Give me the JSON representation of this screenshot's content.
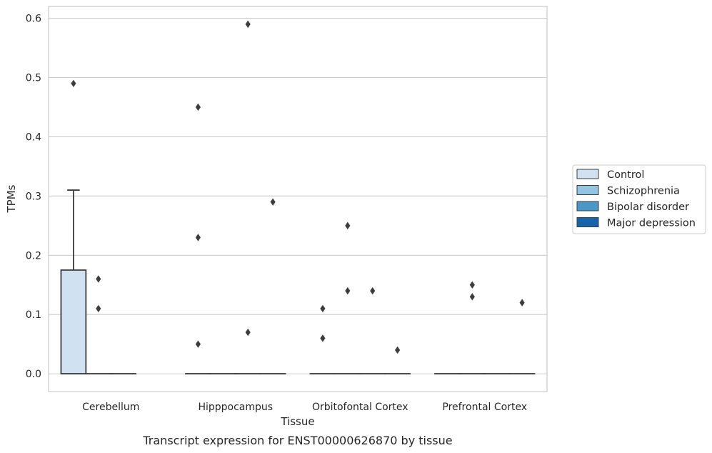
{
  "chart_data": {
    "type": "box",
    "xlabel": "Tissue",
    "ylabel": "TPMs",
    "caption": "Transcript expression for ENST00000626870 by tissue",
    "ylim": [
      -0.03,
      0.62
    ],
    "yticks": [
      "0.0",
      "0.1",
      "0.2",
      "0.3",
      "0.4",
      "0.5",
      "0.6"
    ],
    "grid": "horizontal",
    "legend_position": "right",
    "categories": [
      "Cerebellum",
      "Hipppocampus",
      "Orbitofontal Cortex",
      "Prefrontal Cortex"
    ],
    "series": [
      {
        "name": "Control",
        "color": "#d0e1f2"
      },
      {
        "name": "Schizophrenia",
        "color": "#94c4df"
      },
      {
        "name": "Bipolar disorder",
        "color": "#4a98c9"
      },
      {
        "name": "Major depression",
        "color": "#1764ab"
      }
    ],
    "boxes": [
      {
        "category": 0,
        "series": 0,
        "q1": 0.0,
        "median": 0.0,
        "q3": 0.175,
        "whisker_low": 0.0,
        "whisker_high": 0.31
      },
      {
        "category": 0,
        "series": 1,
        "q1": 0.0,
        "median": 0.0,
        "q3": 0.0,
        "whisker_low": 0.0,
        "whisker_high": 0.0
      },
      {
        "category": 0,
        "series": 2,
        "q1": 0.0,
        "median": 0.0,
        "q3": 0.0,
        "whisker_low": 0.0,
        "whisker_high": 0.0
      },
      {
        "category": 1,
        "series": 0,
        "q1": 0.0,
        "median": 0.0,
        "q3": 0.0,
        "whisker_low": 0.0,
        "whisker_high": 0.0
      },
      {
        "category": 1,
        "series": 1,
        "q1": 0.0,
        "median": 0.0,
        "q3": 0.0,
        "whisker_low": 0.0,
        "whisker_high": 0.0
      },
      {
        "category": 1,
        "series": 2,
        "q1": 0.0,
        "median": 0.0,
        "q3": 0.0,
        "whisker_low": 0.0,
        "whisker_high": 0.0
      },
      {
        "category": 1,
        "series": 3,
        "q1": 0.0,
        "median": 0.0,
        "q3": 0.0,
        "whisker_low": 0.0,
        "whisker_high": 0.0
      },
      {
        "category": 2,
        "series": 0,
        "q1": 0.0,
        "median": 0.0,
        "q3": 0.0,
        "whisker_low": 0.0,
        "whisker_high": 0.0
      },
      {
        "category": 2,
        "series": 1,
        "q1": 0.0,
        "median": 0.0,
        "q3": 0.0,
        "whisker_low": 0.0,
        "whisker_high": 0.0
      },
      {
        "category": 2,
        "series": 2,
        "q1": 0.0,
        "median": 0.0,
        "q3": 0.0,
        "whisker_low": 0.0,
        "whisker_high": 0.0
      },
      {
        "category": 2,
        "series": 3,
        "q1": 0.0,
        "median": 0.0,
        "q3": 0.0,
        "whisker_low": 0.0,
        "whisker_high": 0.0
      },
      {
        "category": 3,
        "series": 0,
        "q1": 0.0,
        "median": 0.0,
        "q3": 0.0,
        "whisker_low": 0.0,
        "whisker_high": 0.0
      },
      {
        "category": 3,
        "series": 1,
        "q1": 0.0,
        "median": 0.0,
        "q3": 0.0,
        "whisker_low": 0.0,
        "whisker_high": 0.0
      },
      {
        "category": 3,
        "series": 2,
        "q1": 0.0,
        "median": 0.0,
        "q3": 0.0,
        "whisker_low": 0.0,
        "whisker_high": 0.0
      },
      {
        "category": 3,
        "series": 3,
        "q1": 0.0,
        "median": 0.0,
        "q3": 0.0,
        "whisker_low": 0.0,
        "whisker_high": 0.0
      }
    ],
    "outliers": [
      {
        "category": 0,
        "series": 0,
        "value": 0.49
      },
      {
        "category": 0,
        "series": 1,
        "value": 0.16
      },
      {
        "category": 0,
        "series": 1,
        "value": 0.11
      },
      {
        "category": 1,
        "series": 0,
        "value": 0.45
      },
      {
        "category": 1,
        "series": 0,
        "value": 0.23
      },
      {
        "category": 1,
        "series": 0,
        "value": 0.05
      },
      {
        "category": 1,
        "series": 2,
        "value": 0.59
      },
      {
        "category": 1,
        "series": 2,
        "value": 0.07
      },
      {
        "category": 1,
        "series": 3,
        "value": 0.29
      },
      {
        "category": 2,
        "series": 0,
        "value": 0.11
      },
      {
        "category": 2,
        "series": 0,
        "value": 0.06
      },
      {
        "category": 2,
        "series": 1,
        "value": 0.25
      },
      {
        "category": 2,
        "series": 1,
        "value": 0.14
      },
      {
        "category": 2,
        "series": 2,
        "value": 0.14
      },
      {
        "category": 2,
        "series": 3,
        "value": 0.04
      },
      {
        "category": 3,
        "series": 1,
        "value": 0.15
      },
      {
        "category": 3,
        "series": 1,
        "value": 0.13
      },
      {
        "category": 3,
        "series": 3,
        "value": 0.12
      }
    ]
  }
}
